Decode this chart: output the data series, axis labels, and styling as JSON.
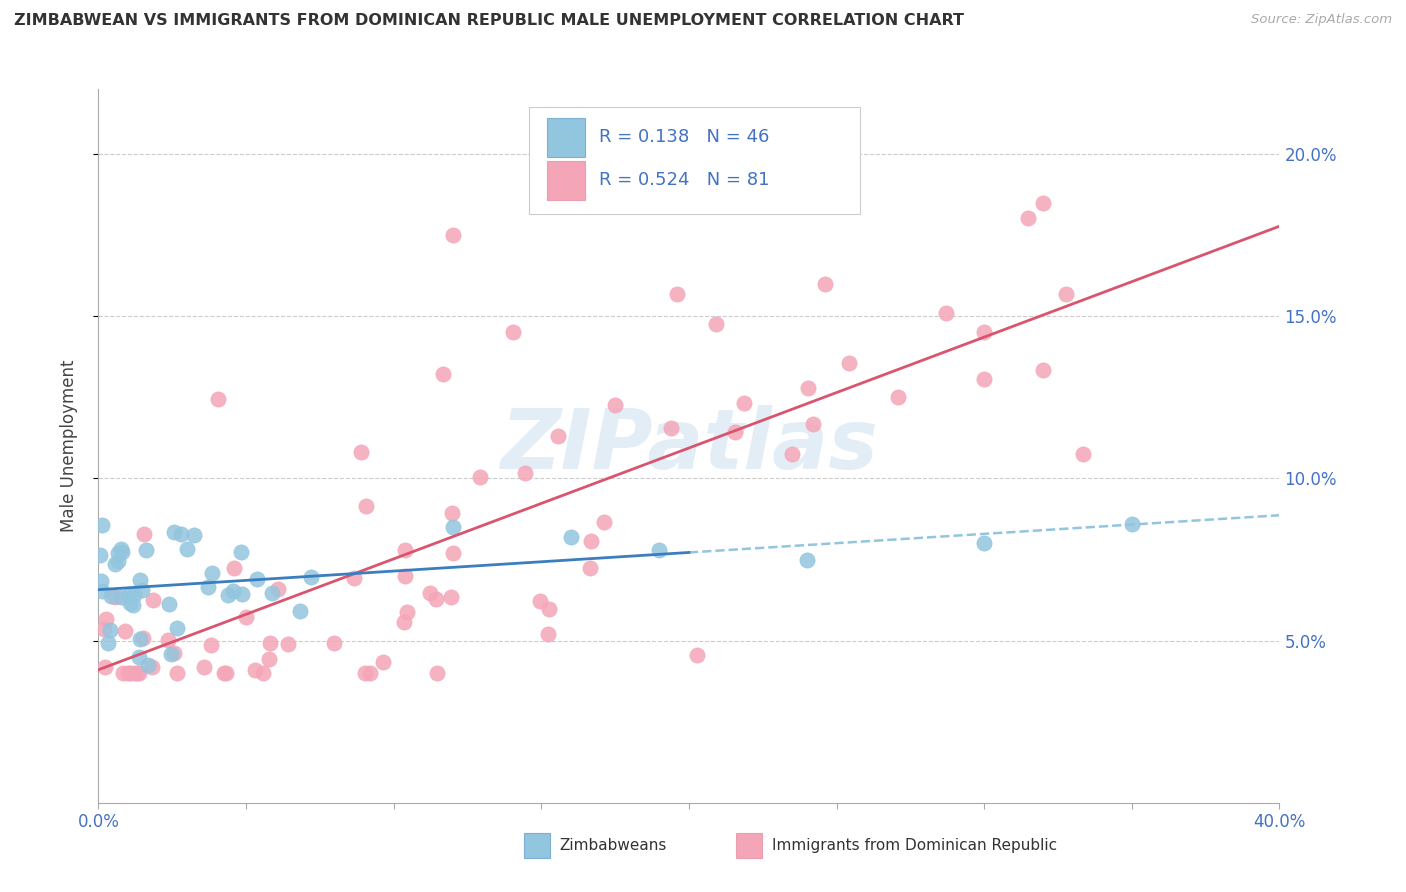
{
  "title": "ZIMBABWEAN VS IMMIGRANTS FROM DOMINICAN REPUBLIC MALE UNEMPLOYMENT CORRELATION CHART",
  "source": "Source: ZipAtlas.com",
  "ylabel": "Male Unemployment",
  "xlim": [
    0.0,
    0.4
  ],
  "ylim": [
    0.0,
    0.22
  ],
  "yticks": [
    0.05,
    0.1,
    0.15,
    0.2
  ],
  "yticklabels": [
    "5.0%",
    "10.0%",
    "15.0%",
    "20.0%"
  ],
  "legend1_R": "0.138",
  "legend1_N": "46",
  "legend2_R": "0.524",
  "legend2_N": "81",
  "blue_color": "#92c5de",
  "pink_color": "#f4a6b8",
  "blue_line_color": "#3a7ebf",
  "pink_line_color": "#d9546e",
  "dashed_line_color": "#92c5de",
  "watermark": "ZIPatlas",
  "watermark_color": "#b8d4ea",
  "background_color": "#ffffff",
  "grid_color": "#cccccc",
  "tick_color": "#4472c4",
  "title_color": "#333333",
  "ylabel_color": "#444444",
  "legend_text_color": "#4472c4",
  "legend_label_color": "#222222",
  "bottom_legend_color": "#333333"
}
